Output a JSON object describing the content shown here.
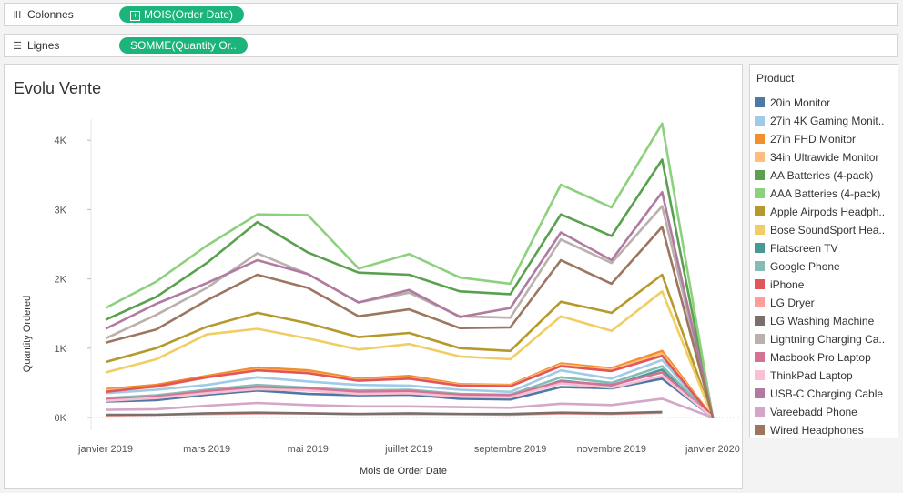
{
  "shelves": {
    "columns": {
      "label": "Colonnes",
      "icon": "columns-icon",
      "pill": "MOIS(Order Date)"
    },
    "rows": {
      "label": "Lignes",
      "icon": "rows-icon",
      "pill": "SOMME(Quantity Or.."
    }
  },
  "chart_data": {
    "type": "line",
    "title": "Evolu Vente",
    "xlabel": "Mois de Order Date",
    "ylabel": "Quantity Ordered",
    "ylim": [
      0,
      4400
    ],
    "yticks": [
      0,
      1000,
      2000,
      3000,
      4000
    ],
    "yticklabels": [
      "0K",
      "1K",
      "2K",
      "3K",
      "4K"
    ],
    "x": [
      "2019-01",
      "2019-02",
      "2019-03",
      "2019-04",
      "2019-05",
      "2019-06",
      "2019-07",
      "2019-08",
      "2019-09",
      "2019-10",
      "2019-11",
      "2019-12",
      "2020-01"
    ],
    "xticks": [
      "2019-01",
      "2019-03",
      "2019-05",
      "2019-07",
      "2019-09",
      "2019-11",
      "2020-01"
    ],
    "xticklabels": [
      "janvier 2019",
      "mars 2019",
      "mai 2019",
      "juillet 2019",
      "septembre 2019",
      "novembre 2019",
      "janvier 2020"
    ],
    "grid": "none",
    "legend": {
      "title": "Product",
      "position": "right"
    },
    "series": [
      {
        "name": "20in Monitor",
        "color": "#4e79a7",
        "values": [
          230,
          250,
          330,
          390,
          340,
          320,
          330,
          270,
          260,
          440,
          420,
          560,
          0
        ]
      },
      {
        "name": "27in 4K Gaming Monit..",
        "color": "#a0cbe8",
        "values": [
          350,
          400,
          470,
          580,
          520,
          470,
          460,
          400,
          370,
          680,
          560,
          830,
          0
        ]
      },
      {
        "name": "27in FHD Monitor",
        "color": "#f28e2b",
        "values": [
          410,
          470,
          600,
          720,
          680,
          560,
          600,
          480,
          470,
          780,
          710,
          960,
          0
        ]
      },
      {
        "name": "34in Ultrawide Monitor",
        "color": "#ffbe7d",
        "values": [
          390,
          440,
          580,
          690,
          650,
          540,
          570,
          470,
          460,
          760,
          690,
          920,
          0
        ]
      },
      {
        "name": "AA Batteries (4-pack)",
        "color": "#59a14f",
        "values": [
          1410,
          1740,
          2230,
          2820,
          2380,
          2090,
          2060,
          1820,
          1780,
          2930,
          2620,
          3720,
          0
        ]
      },
      {
        "name": "AAA Batteries (4-pack)",
        "color": "#8cd17d",
        "values": [
          1580,
          1960,
          2480,
          2930,
          2920,
          2150,
          2360,
          2020,
          1930,
          3360,
          3030,
          4240,
          0
        ]
      },
      {
        "name": "Apple Airpods Headph..",
        "color": "#b6992d",
        "values": [
          800,
          1000,
          1310,
          1510,
          1360,
          1160,
          1220,
          1000,
          960,
          1670,
          1510,
          2060,
          0
        ]
      },
      {
        "name": "Bose SoundSport Hea..",
        "color": "#f1ce63",
        "values": [
          650,
          840,
          1200,
          1280,
          1140,
          980,
          1060,
          880,
          840,
          1460,
          1250,
          1820,
          0
        ]
      },
      {
        "name": "Flatscreen TV",
        "color": "#499894",
        "values": [
          250,
          290,
          370,
          440,
          400,
          360,
          370,
          310,
          300,
          530,
          460,
          690,
          0
        ]
      },
      {
        "name": "Google Phone",
        "color": "#86bcb6",
        "values": [
          280,
          320,
          400,
          470,
          430,
          390,
          400,
          340,
          330,
          580,
          500,
          740,
          0
        ]
      },
      {
        "name": "iPhone",
        "color": "#e15759",
        "values": [
          370,
          450,
          580,
          680,
          640,
          530,
          560,
          460,
          450,
          740,
          670,
          890,
          0
        ]
      },
      {
        "name": "LG Dryer",
        "color": "#ff9d9a",
        "values": [
          30,
          40,
          50,
          60,
          60,
          50,
          50,
          50,
          40,
          60,
          50,
          70,
          null
        ]
      },
      {
        "name": "LG Washing Machine",
        "color": "#79706e",
        "values": [
          40,
          40,
          60,
          70,
          60,
          50,
          60,
          50,
          50,
          70,
          60,
          80,
          null
        ]
      },
      {
        "name": "Lightning Charging Ca..",
        "color": "#bab0ac",
        "values": [
          1140,
          1480,
          1870,
          2370,
          2070,
          1660,
          1800,
          1460,
          1440,
          2570,
          2230,
          3050,
          0
        ]
      },
      {
        "name": "Macbook Pro Laptop",
        "color": "#d37295",
        "values": [
          260,
          300,
          380,
          440,
          420,
          370,
          380,
          330,
          320,
          520,
          470,
          650,
          0
        ]
      },
      {
        "name": "ThinkPad Laptop",
        "color": "#fabfd2",
        "values": [
          240,
          280,
          350,
          410,
          390,
          340,
          350,
          300,
          290,
          490,
          430,
          600,
          0
        ]
      },
      {
        "name": "USB-C Charging Cable",
        "color": "#b07aa1",
        "values": [
          1280,
          1640,
          1940,
          2270,
          2070,
          1660,
          1840,
          1450,
          1580,
          2670,
          2270,
          3250,
          0
        ]
      },
      {
        "name": "Vareebadd Phone",
        "color": "#d4a6c8",
        "values": [
          110,
          120,
          170,
          210,
          180,
          160,
          160,
          150,
          140,
          200,
          180,
          270,
          0
        ]
      },
      {
        "name": "Wired Headphones",
        "color": "#9d7660",
        "values": [
          1080,
          1270,
          1690,
          2060,
          1870,
          1460,
          1560,
          1290,
          1300,
          2270,
          1930,
          2750,
          0
        ]
      }
    ]
  }
}
